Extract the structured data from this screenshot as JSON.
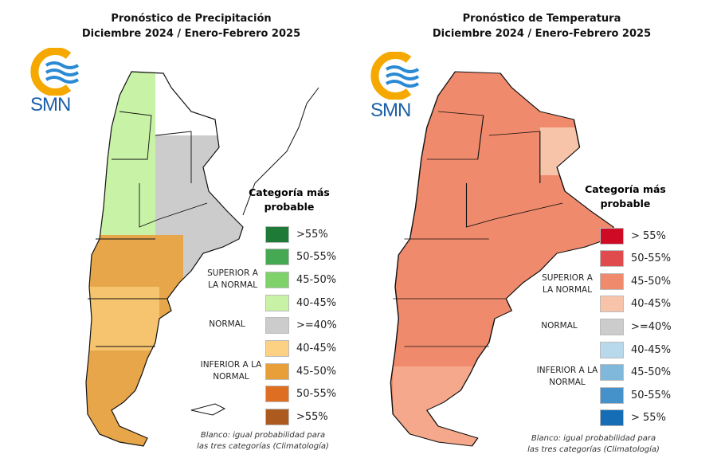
{
  "panels": [
    {
      "title_line1": "Pronóstico de Precipitación",
      "title_line2": "Diciembre 2024 / Enero-Febrero 2025",
      "logo_text": "SMN",
      "legend_title_line1": "Categoría más",
      "legend_title_line2": "probable",
      "categories": {
        "superior": "SUPERIOR A LA NORMAL",
        "normal": "NORMAL",
        "inferior": "INFERIOR A LA NORMAL"
      },
      "legend": [
        {
          "label": ">55%",
          "color": "#1e7b37"
        },
        {
          "label": "50-55%",
          "color": "#45a853"
        },
        {
          "label": "45-50%",
          "color": "#7fd16a"
        },
        {
          "label": "40-45%",
          "color": "#c8f2a5"
        },
        {
          "label": ">=40%",
          "color": "#cccccc"
        },
        {
          "label": "40-45%",
          "color": "#fdd183"
        },
        {
          "label": "45-50%",
          "color": "#e89f3a"
        },
        {
          "label": "50-55%",
          "color": "#de6f22"
        },
        {
          "label": ">55%",
          "color": "#ad5a1e"
        }
      ],
      "note_line1": "Blanco: igual probabilidad para",
      "note_line2": "las tres categorías (Climatología)"
    },
    {
      "title_line1": "Pronóstico de Temperatura",
      "title_line2": "Diciembre 2024 / Enero-Febrero 2025",
      "logo_text": "SMN",
      "legend_title_line1": "Categoría más",
      "legend_title_line2": "probable",
      "categories": {
        "superior": "SUPERIOR A LA NORMAL",
        "normal": "NORMAL",
        "inferior": "INFERIOR A LA NORMAL"
      },
      "legend": [
        {
          "label": "> 55%",
          "color": "#cf0a24"
        },
        {
          "label": "50-55%",
          "color": "#e04b4d"
        },
        {
          "label": "45-50%",
          "color": "#f08a6c"
        },
        {
          "label": "40-45%",
          "color": "#f7c4aa"
        },
        {
          "label": ">=40%",
          "color": "#cccccc"
        },
        {
          "label": "40-45%",
          "color": "#b8d8ec"
        },
        {
          "label": "45-50%",
          "color": "#80b8db"
        },
        {
          "label": "50-55%",
          "color": "#4591c9"
        },
        {
          "label": "> 55%",
          "color": "#146db5"
        }
      ],
      "note_line1": "Blanco: igual probabilidad para",
      "note_line2": "las tres categorías (Climatología)"
    }
  ]
}
